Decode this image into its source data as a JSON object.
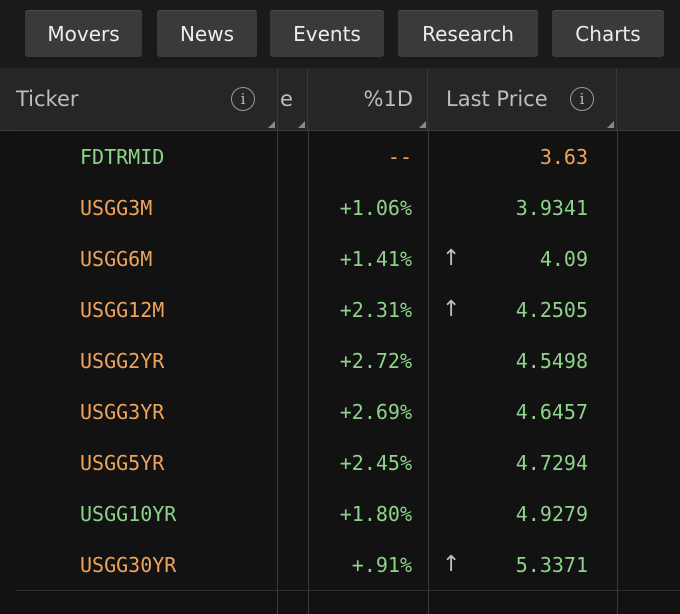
{
  "colors": {
    "orange": "#f0a35a",
    "green": "#8ed38a",
    "background": "#151515"
  },
  "toolbar": {
    "buttons": [
      "Movers",
      "News",
      "Events",
      "Research",
      "Charts"
    ]
  },
  "table": {
    "headers": {
      "ticker": "Ticker",
      "hidden_col_fragment": "e",
      "change": "%1D",
      "last_price": "Last Price"
    },
    "info_icon": "i",
    "rows": [
      {
        "ticker": "FDTRMID",
        "ticker_color": "green",
        "change": "--",
        "change_color": "orange",
        "arrow": "",
        "price": "3.63",
        "price_color": "orange"
      },
      {
        "ticker": "USGG3M",
        "ticker_color": "orange",
        "change": "+1.06%",
        "change_color": "green",
        "arrow": "",
        "price": "3.9341",
        "price_color": "green"
      },
      {
        "ticker": "USGG6M",
        "ticker_color": "orange",
        "change": "+1.41%",
        "change_color": "green",
        "arrow": "↑",
        "price": "4.09",
        "price_color": "green"
      },
      {
        "ticker": "USGG12M",
        "ticker_color": "orange",
        "change": "+2.31%",
        "change_color": "green",
        "arrow": "↑",
        "price": "4.2505",
        "price_color": "green"
      },
      {
        "ticker": "USGG2YR",
        "ticker_color": "orange",
        "change": "+2.72%",
        "change_color": "green",
        "arrow": "",
        "price": "4.5498",
        "price_color": "green"
      },
      {
        "ticker": "USGG3YR",
        "ticker_color": "orange",
        "change": "+2.69%",
        "change_color": "green",
        "arrow": "",
        "price": "4.6457",
        "price_color": "green"
      },
      {
        "ticker": "USGG5YR",
        "ticker_color": "orange",
        "change": "+2.45%",
        "change_color": "green",
        "arrow": "",
        "price": "4.7294",
        "price_color": "green"
      },
      {
        "ticker": "USGG10YR",
        "ticker_color": "green",
        "change": "+1.80%",
        "change_color": "green",
        "arrow": "",
        "price": "4.9279",
        "price_color": "green"
      },
      {
        "ticker": "USGG30YR",
        "ticker_color": "orange",
        "change": "+.91%",
        "change_color": "green",
        "arrow": "↑",
        "price": "5.3371",
        "price_color": "green"
      }
    ]
  }
}
